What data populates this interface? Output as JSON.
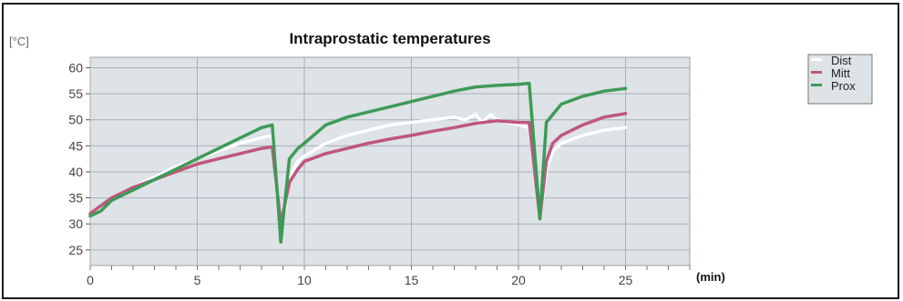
{
  "chart_data": {
    "type": "line",
    "title": "Intraprostatic temperatures",
    "ylabel": "[°C]",
    "xlabel": "(min)",
    "xlim": [
      0,
      28
    ],
    "ylim": [
      22,
      62
    ],
    "xticks": [
      0,
      5,
      10,
      15,
      20,
      25
    ],
    "yticks": [
      25,
      30,
      35,
      40,
      45,
      50,
      55,
      60
    ],
    "grid": true,
    "legend_position": "right",
    "series": [
      {
        "name": "Dist",
        "color": "#ffffff",
        "x": [
          0,
          0.5,
          1,
          2,
          3,
          4,
          5,
          6,
          7,
          8,
          8.5,
          8.9,
          9.3,
          9.7,
          10,
          11,
          12,
          13,
          14,
          15,
          16,
          17,
          17.5,
          18,
          18.3,
          18.7,
          19,
          20,
          20.5,
          21,
          21.3,
          21.6,
          22,
          23,
          24,
          25
        ],
        "y": [
          32,
          33,
          35,
          37,
          39,
          41,
          42.5,
          44,
          45.5,
          46.5,
          47,
          27,
          39,
          42,
          43,
          45.5,
          47,
          48,
          49,
          49.5,
          50,
          50.5,
          50,
          51,
          49.5,
          51,
          50,
          49,
          48.5,
          31,
          40,
          44,
          45.5,
          47,
          48,
          48.5
        ]
      },
      {
        "name": "Mitt",
        "color": "#c0567e",
        "x": [
          0,
          0.5,
          1,
          2,
          3,
          4,
          5,
          6,
          7,
          8,
          8.5,
          8.9,
          9.3,
          9.7,
          10,
          11,
          12,
          13,
          14,
          15,
          16,
          17,
          18,
          19,
          20,
          20.5,
          21,
          21.3,
          21.6,
          22,
          23,
          24,
          25
        ],
        "y": [
          32,
          33.5,
          35,
          37,
          38.5,
          40,
          41.5,
          42.5,
          43.5,
          44.5,
          44.8,
          30,
          38,
          40.5,
          42,
          43.5,
          44.5,
          45.5,
          46.3,
          47,
          47.8,
          48.5,
          49.3,
          49.8,
          49.5,
          49.5,
          31,
          42,
          45.5,
          47,
          49,
          50.5,
          51.2
        ]
      },
      {
        "name": "Prox",
        "color": "#3e9a58",
        "x": [
          0,
          0.5,
          1,
          2,
          3,
          4,
          5,
          6,
          7,
          8,
          8.5,
          8.9,
          9.3,
          9.7,
          10,
          11,
          12,
          13,
          14,
          15,
          16,
          17,
          18,
          19,
          20,
          20.5,
          21,
          21.3,
          21.6,
          22,
          23,
          24,
          25
        ],
        "y": [
          31.5,
          32.5,
          34.5,
          36.5,
          38.5,
          40.5,
          42.5,
          44.5,
          46.5,
          48.5,
          49,
          26.5,
          42.5,
          44.5,
          45.5,
          49,
          50.5,
          51.5,
          52.5,
          53.5,
          54.5,
          55.5,
          56.3,
          56.6,
          56.8,
          57,
          31,
          49.5,
          51,
          53,
          54.5,
          55.5,
          56
        ]
      }
    ]
  },
  "legend": {
    "items": [
      {
        "label": "Dist",
        "color": "#ffffff"
      },
      {
        "label": "Mitt",
        "color": "#c0567e"
      },
      {
        "label": "Prox",
        "color": "#3e9a58"
      }
    ]
  }
}
